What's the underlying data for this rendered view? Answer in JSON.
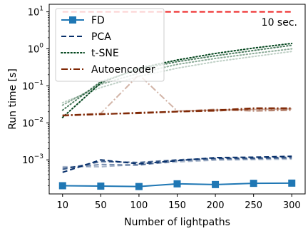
{
  "chart_data": {
    "type": "line",
    "xlabel": "Number of lightpaths",
    "ylabel": "Run time [s]",
    "x": [
      10,
      50,
      100,
      150,
      200,
      250,
      300
    ],
    "xticks": [
      "10",
      "50",
      "100",
      "150",
      "200",
      "250",
      "300"
    ],
    "ylim": [
      0.00012,
      16
    ],
    "yscale": "log",
    "yticks": [
      {
        "value": 0.001,
        "base": "10",
        "exp": "−3"
      },
      {
        "value": 0.01,
        "base": "10",
        "exp": "−2"
      },
      {
        "value": 0.1,
        "base": "10",
        "exp": "−1"
      },
      {
        "value": 1,
        "base": "10",
        "exp": "0"
      },
      {
        "value": 10,
        "base": "10",
        "exp": "1"
      }
    ],
    "legend_position": "top-left",
    "threshold": {
      "value": 10,
      "label": "10 sec.",
      "color": "#ee2222"
    },
    "series": [
      {
        "name": "FD",
        "color": "#1f77b4",
        "style": "solid",
        "marker": "square",
        "runs": [
          {
            "values": [
              0.0002,
              0.000195,
              0.00019,
              0.000225,
              0.000215,
              0.000232,
              0.000235
            ],
            "opacity": 1
          }
        ]
      },
      {
        "name": "PCA",
        "color": "#08306b",
        "style": "dashed",
        "marker": "none",
        "runs": [
          {
            "values": [
              0.00046,
              0.001,
              0.00078,
              0.00095,
              0.00115,
              0.00118,
              0.00125
            ],
            "opacity": 1
          },
          {
            "values": [
              0.00055,
              0.0009,
              0.00085,
              0.001,
              0.0011,
              0.00112,
              0.00118
            ],
            "opacity": 0.75
          },
          {
            "values": [
              0.0006,
              0.00075,
              0.00072,
              0.00095,
              0.00105,
              0.00108,
              0.00112
            ],
            "opacity": 0.55
          },
          {
            "values": [
              0.00065,
              0.00065,
              0.00075,
              0.00088,
              0.00098,
              0.00102,
              0.00105
            ],
            "opacity": 0.35
          }
        ]
      },
      {
        "name": "t-SNE",
        "color": "#00441b",
        "style": "dotted",
        "marker": "none",
        "runs": [
          {
            "values": [
              0.014,
              0.12,
              0.3,
              0.5,
              0.75,
              1.05,
              1.4
            ],
            "opacity": 1
          },
          {
            "values": [
              0.022,
              0.13,
              0.28,
              0.45,
              0.65,
              0.9,
              1.25
            ],
            "opacity": 0.7
          },
          {
            "values": [
              0.03,
              0.11,
              0.22,
              0.38,
              0.55,
              0.75,
              1.0
            ],
            "opacity": 0.45
          },
          {
            "values": [
              0.035,
              0.09,
              0.18,
              0.3,
              0.45,
              0.62,
              0.85
            ],
            "opacity": 0.25
          }
        ]
      },
      {
        "name": "Autoencoder",
        "color": "#7f2704",
        "style": "dashdot",
        "marker": "none",
        "runs": [
          {
            "values": [
              0.016,
              0.017,
              0.019,
              0.02,
              0.022,
              0.025,
              0.025
            ],
            "opacity": 1
          },
          {
            "values": [
              0.016,
              0.0175,
              0.018,
              0.02,
              0.021,
              0.024,
              0.024
            ],
            "opacity": 0.85
          },
          {
            "values": [
              0.0155,
              0.017,
              0.0185,
              0.0205,
              0.023,
              0.021,
              0.022
            ],
            "opacity": 0.6
          },
          {
            "values": [
              0.016,
              0.018,
              0.2,
              0.021,
              0.022,
              0.023,
              0.024
            ],
            "opacity": 0.35
          }
        ]
      }
    ]
  }
}
